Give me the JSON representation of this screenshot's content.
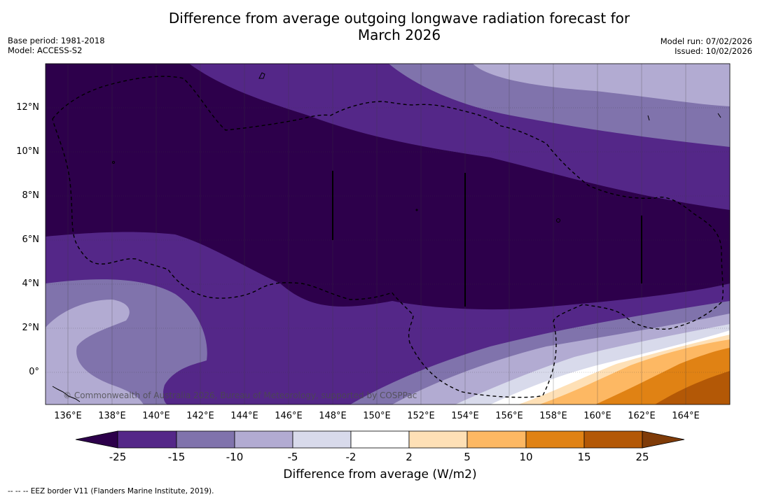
{
  "title_line1": "Difference from average outgoing longwave radiation forecast for",
  "title_line2": "March 2026",
  "base_period": "Base period: 1981-2018",
  "model": "Model: ACCESS-S2",
  "model_run": "Model run: 07/02/2026",
  "issued": "Issued: 10/02/2026",
  "copyright": "© Commonwealth of Australia 2026, Bureau of Meteorology, supported by COSPPac",
  "footnote": "--  --  -- EEZ border V11 (Flanders Marine Institute, 2019).",
  "lat_ticks": [
    "12°N",
    "10°N",
    "8°N",
    "6°N",
    "4°N",
    "2°N",
    "0°"
  ],
  "lon_ticks": [
    "136°E",
    "138°E",
    "140°E",
    "142°E",
    "144°E",
    "146°E",
    "148°E",
    "150°E",
    "152°E",
    "154°E",
    "156°E",
    "158°E",
    "160°E",
    "162°E",
    "164°E"
  ],
  "colorbar": {
    "title": "Difference from average (W/m2)",
    "labels": [
      "-25",
      "-15",
      "-10",
      "-5",
      "-2",
      "2",
      "5",
      "10",
      "15",
      "25"
    ],
    "colors": [
      "#2d004b",
      "#542788",
      "#8073ac",
      "#b2abd2",
      "#d8daeb",
      "#ffffff",
      "#fee0b6",
      "#fdb863",
      "#e08214",
      "#b35806",
      "#7f3b08"
    ]
  }
}
